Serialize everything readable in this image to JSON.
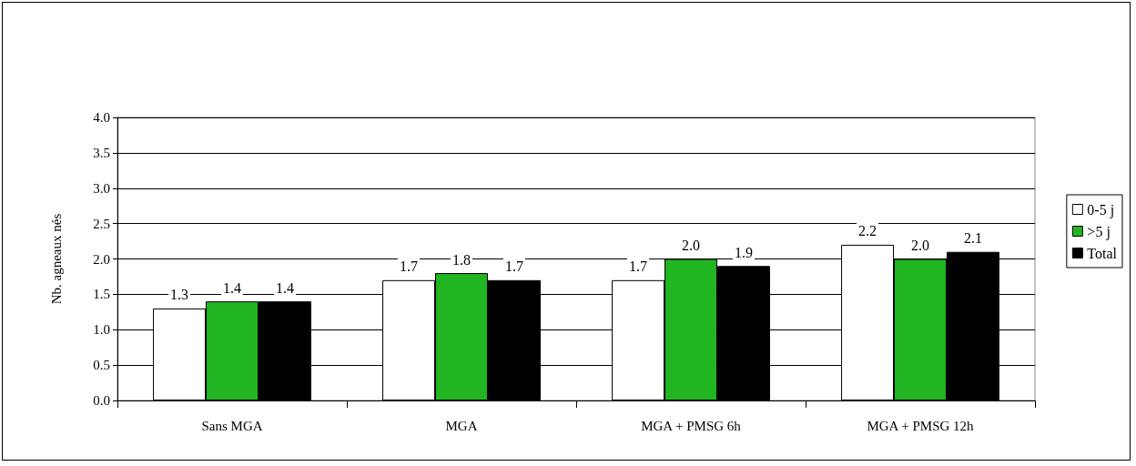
{
  "chart_data": {
    "type": "bar",
    "ylabel": "Nb. agneaux nés",
    "categories": [
      "Sans MGA",
      "MGA",
      "MGA + PMSG 6h",
      "MGA + PMSG 12h"
    ],
    "series": [
      {
        "name": "0-5 j",
        "color": "#ffffff",
        "values": [
          1.3,
          1.7,
          1.7,
          2.2
        ],
        "value_labels": [
          "1.3",
          "1.7",
          "1.7",
          "2.2"
        ]
      },
      {
        "name": ">5 j",
        "color": "#22b522",
        "values": [
          1.4,
          1.8,
          2.0,
          2.0
        ],
        "value_labels": [
          "1.4",
          "1.8",
          "2.0",
          "2.0"
        ]
      },
      {
        "name": "Total",
        "color": "#000000",
        "values": [
          1.4,
          1.7,
          1.9,
          2.1
        ],
        "value_labels": [
          "1.4",
          "1.7",
          "1.9",
          "2.1"
        ]
      }
    ],
    "ylim": [
      0,
      4
    ],
    "yticks": [
      {
        "value": 0,
        "label": "0.0"
      },
      0.5,
      {
        "value": 1,
        "label": "1.0"
      },
      1.5,
      {
        "value": 2,
        "label": "2.0"
      },
      2.5,
      {
        "value": 3,
        "label": "3.0"
      },
      3.5,
      {
        "value": 4,
        "label": "4.0"
      }
    ],
    "grid": "y",
    "legend": "right"
  }
}
